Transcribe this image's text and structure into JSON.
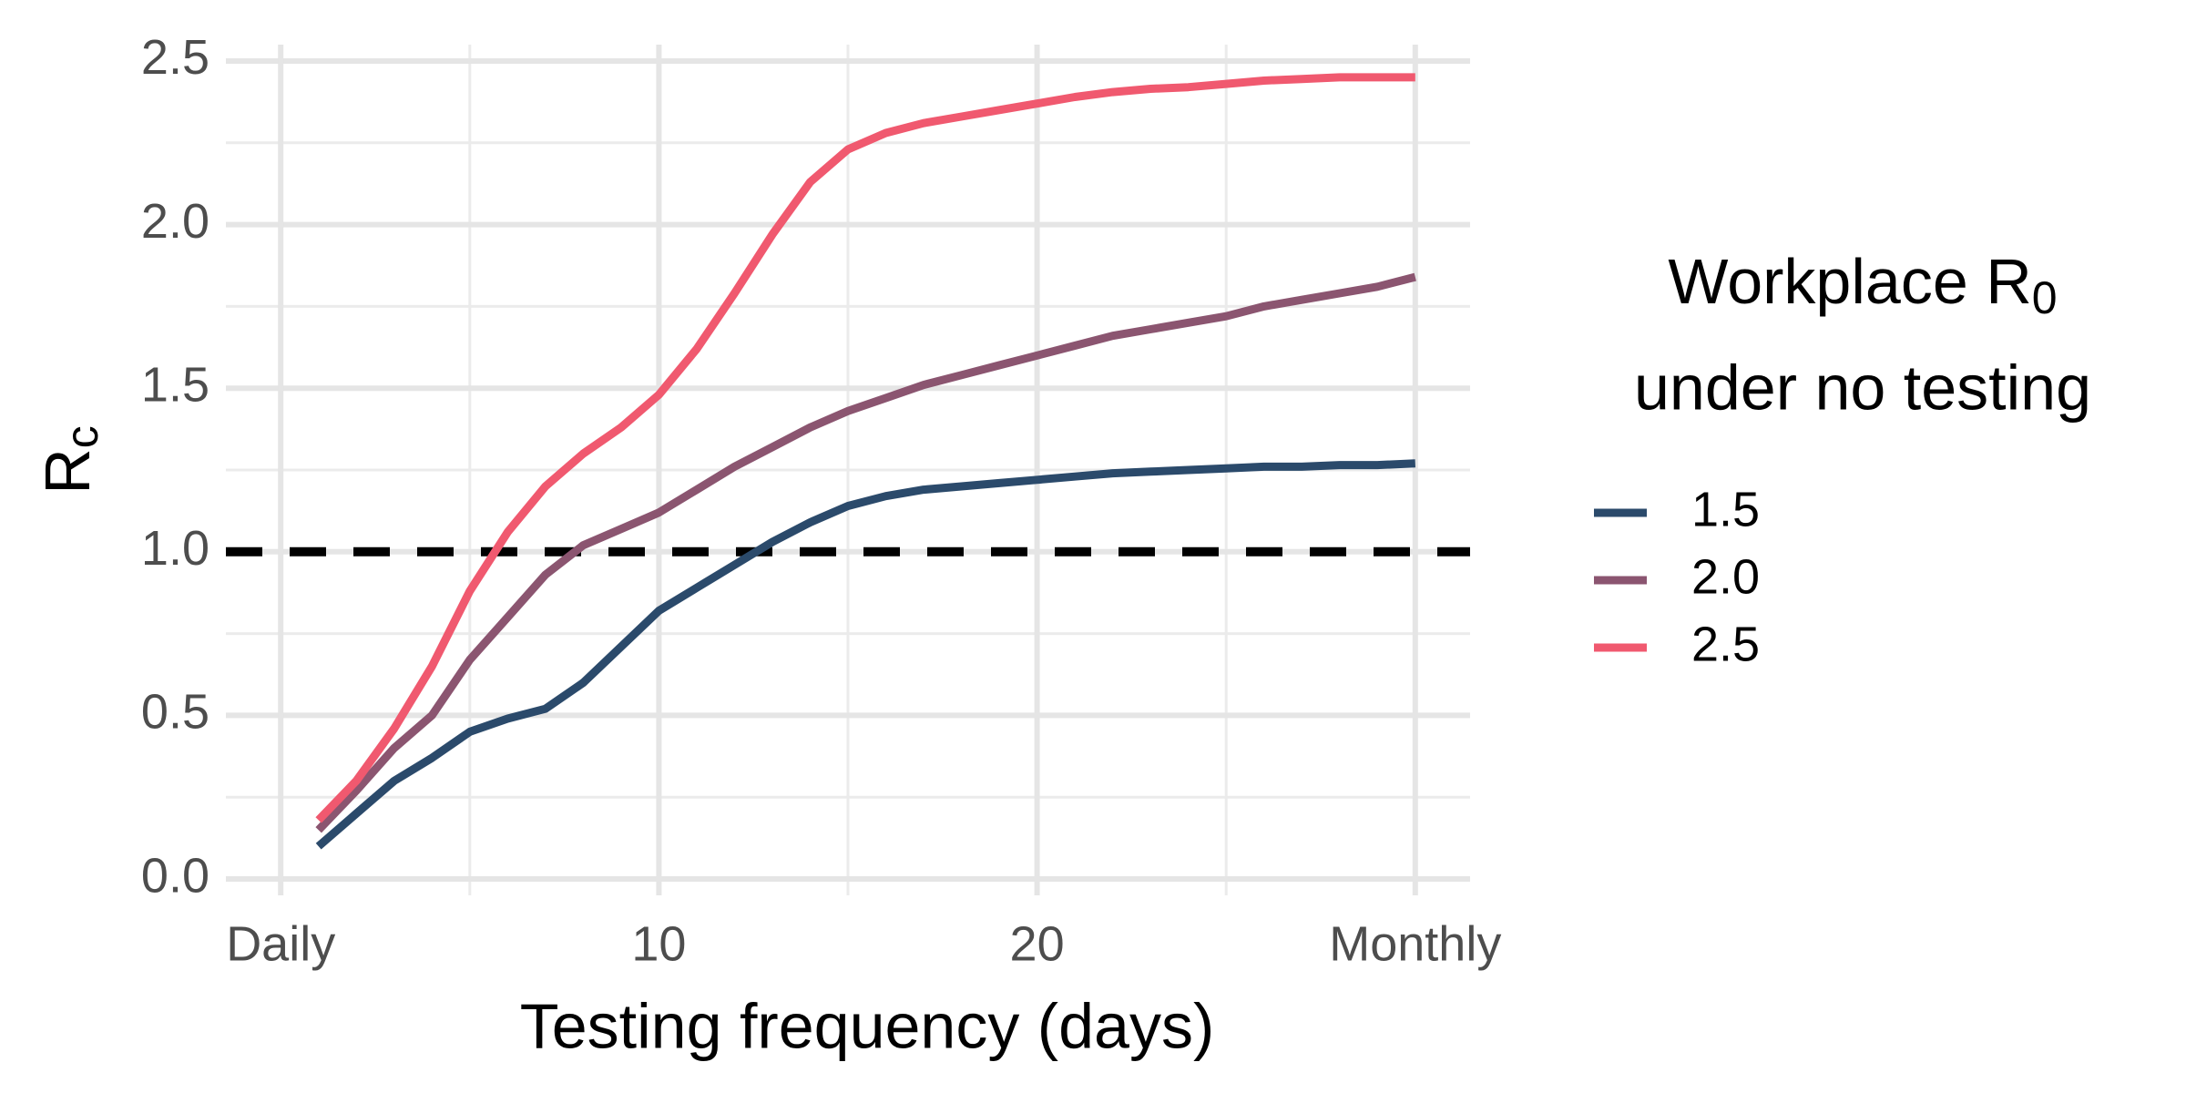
{
  "chart_data": {
    "type": "line",
    "x_label": "Testing frequency (days)",
    "y_label": {
      "text": "R",
      "subscript": "c"
    },
    "legend_title": {
      "line1": "Workplace R",
      "line1_subscript": "0",
      "line2": "under no testing"
    },
    "legend_position": "right",
    "x": [
      1,
      2,
      3,
      4,
      5,
      6,
      7,
      8,
      9,
      10,
      11,
      12,
      13,
      14,
      15,
      16,
      17,
      18,
      19,
      20,
      21,
      22,
      23,
      24,
      25,
      26,
      27,
      28,
      29,
      30
    ],
    "series": [
      {
        "name": "1.5",
        "color": "#2b4a6b",
        "values": [
          0.1,
          0.2,
          0.3,
          0.37,
          0.45,
          0.49,
          0.52,
          0.6,
          0.71,
          0.82,
          0.89,
          0.96,
          1.03,
          1.09,
          1.14,
          1.17,
          1.19,
          1.2,
          1.21,
          1.22,
          1.23,
          1.24,
          1.245,
          1.25,
          1.255,
          1.26,
          1.26,
          1.265,
          1.265,
          1.27
        ]
      },
      {
        "name": "2.0",
        "color": "#8b5570",
        "values": [
          0.15,
          0.27,
          0.4,
          0.5,
          0.67,
          0.8,
          0.93,
          1.02,
          1.07,
          1.12,
          1.19,
          1.26,
          1.32,
          1.38,
          1.43,
          1.47,
          1.51,
          1.54,
          1.57,
          1.6,
          1.63,
          1.66,
          1.68,
          1.7,
          1.72,
          1.75,
          1.77,
          1.79,
          1.81,
          1.84
        ]
      },
      {
        "name": "2.5",
        "color": "#f0596f",
        "values": [
          0.18,
          0.3,
          0.46,
          0.65,
          0.88,
          1.06,
          1.2,
          1.3,
          1.38,
          1.48,
          1.62,
          1.79,
          1.97,
          2.13,
          2.23,
          2.28,
          2.31,
          2.33,
          2.35,
          2.37,
          2.39,
          2.405,
          2.415,
          2.42,
          2.43,
          2.44,
          2.445,
          2.45,
          2.45,
          2.45
        ]
      }
    ],
    "hline": 1,
    "xlim": [
      -1.45,
      31.45
    ],
    "ylim": [
      -0.05,
      2.55
    ],
    "xticks": [
      {
        "value": 0,
        "label": "Daily"
      },
      10,
      20,
      {
        "value": 30,
        "label": "Monthly"
      }
    ],
    "minor_xticks": [
      5,
      15,
      25
    ],
    "yticks": [
      {
        "value": 0,
        "label": "0.0"
      },
      0.5,
      {
        "value": 1,
        "label": "1.0"
      },
      1.5,
      {
        "value": 2,
        "label": "2.0"
      },
      2.5
    ],
    "minor_yticks": [
      0.25,
      0.75,
      1.25,
      1.75,
      2.25
    ],
    "grid": true
  }
}
